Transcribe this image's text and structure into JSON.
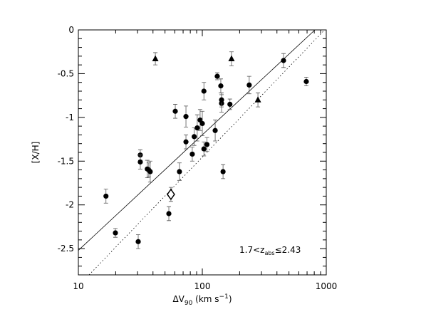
{
  "chart_data": {
    "type": "scatter",
    "xlabel": {
      "main": "ΔV",
      "sub": "90",
      "rest": " (km s",
      "sup": "−1",
      "end": ")"
    },
    "ylabel": "[X/H]",
    "annotation": {
      "main": "1.7<z",
      "sub": "abs",
      "rest": "≤2.43"
    },
    "xlim": [
      10,
      1000
    ],
    "ylim": [
      -2.8,
      0
    ],
    "xscale": "log",
    "xticks": [
      10,
      100,
      1000
    ],
    "xminorticks": [
      20,
      30,
      40,
      50,
      60,
      70,
      80,
      90,
      200,
      300,
      400,
      500,
      600,
      700,
      800,
      900
    ],
    "yticks": [
      0,
      -0.5,
      -1,
      -1.5,
      -2,
      -2.5
    ],
    "yminorticks": [
      -0.1,
      -0.2,
      -0.3,
      -0.4,
      -0.6,
      -0.7,
      -0.8,
      -0.9,
      -1.1,
      -1.2,
      -1.3,
      -1.4,
      -1.6,
      -1.7,
      -1.8,
      -1.9,
      -2.1,
      -2.2,
      -2.3,
      -2.4,
      -2.6,
      -2.7
    ],
    "series": [
      {
        "marker": "circle",
        "color": "#000",
        "x": [
          16.7,
          19.9,
          30.4,
          31.6,
          31.6,
          36,
          37,
          38,
          53.7,
          60.5,
          65.4,
          73.8,
          73.8,
          83,
          86,
          91,
          96,
          100,
          103,
          103,
          109,
          127,
          132,
          141,
          143,
          143,
          147,
          167,
          239,
          452,
          690
        ],
        "values": [
          -1.9,
          -2.32,
          -2.42,
          -1.43,
          -1.51,
          -1.59,
          -1.6,
          -1.62,
          -2.1,
          -0.93,
          -1.62,
          -0.99,
          -1.28,
          -1.42,
          -1.22,
          -1.12,
          -1.03,
          -1.07,
          -0.7,
          -1.36,
          -1.31,
          -1.15,
          -0.53,
          -0.64,
          -0.84,
          -0.8,
          -1.62,
          -0.85,
          -0.63,
          -0.35,
          -0.59
        ],
        "yerr": [
          0.08,
          0.05,
          0.08,
          0.06,
          0.08,
          0.1,
          0.08,
          0.12,
          0.08,
          0.08,
          0.1,
          0.12,
          0.08,
          0.08,
          0.1,
          0.15,
          0.12,
          0.14,
          0.1,
          0.08,
          0.08,
          0.12,
          0.04,
          0.08,
          0.1,
          0.08,
          0.08,
          0.06,
          0.1,
          0.08,
          0.05
        ]
      },
      {
        "marker": "triangle",
        "color": "#000",
        "x": [
          41.8,
          172,
          281
        ],
        "values": [
          -0.33,
          -0.33,
          -0.8
        ],
        "yerr": [
          0.07,
          0.08,
          0.08
        ]
      },
      {
        "marker": "diamond",
        "color": "#000",
        "x": [
          55.8
        ],
        "values": [
          -1.88
        ],
        "yerr": [
          0.08
        ]
      }
    ],
    "lines": [
      {
        "style": "solid",
        "x": [
          10,
          810
        ],
        "values": [
          -2.52,
          0
        ]
      },
      {
        "style": "dotted",
        "x": [
          12.2,
          970
        ],
        "values": [
          -2.8,
          0
        ]
      }
    ]
  }
}
